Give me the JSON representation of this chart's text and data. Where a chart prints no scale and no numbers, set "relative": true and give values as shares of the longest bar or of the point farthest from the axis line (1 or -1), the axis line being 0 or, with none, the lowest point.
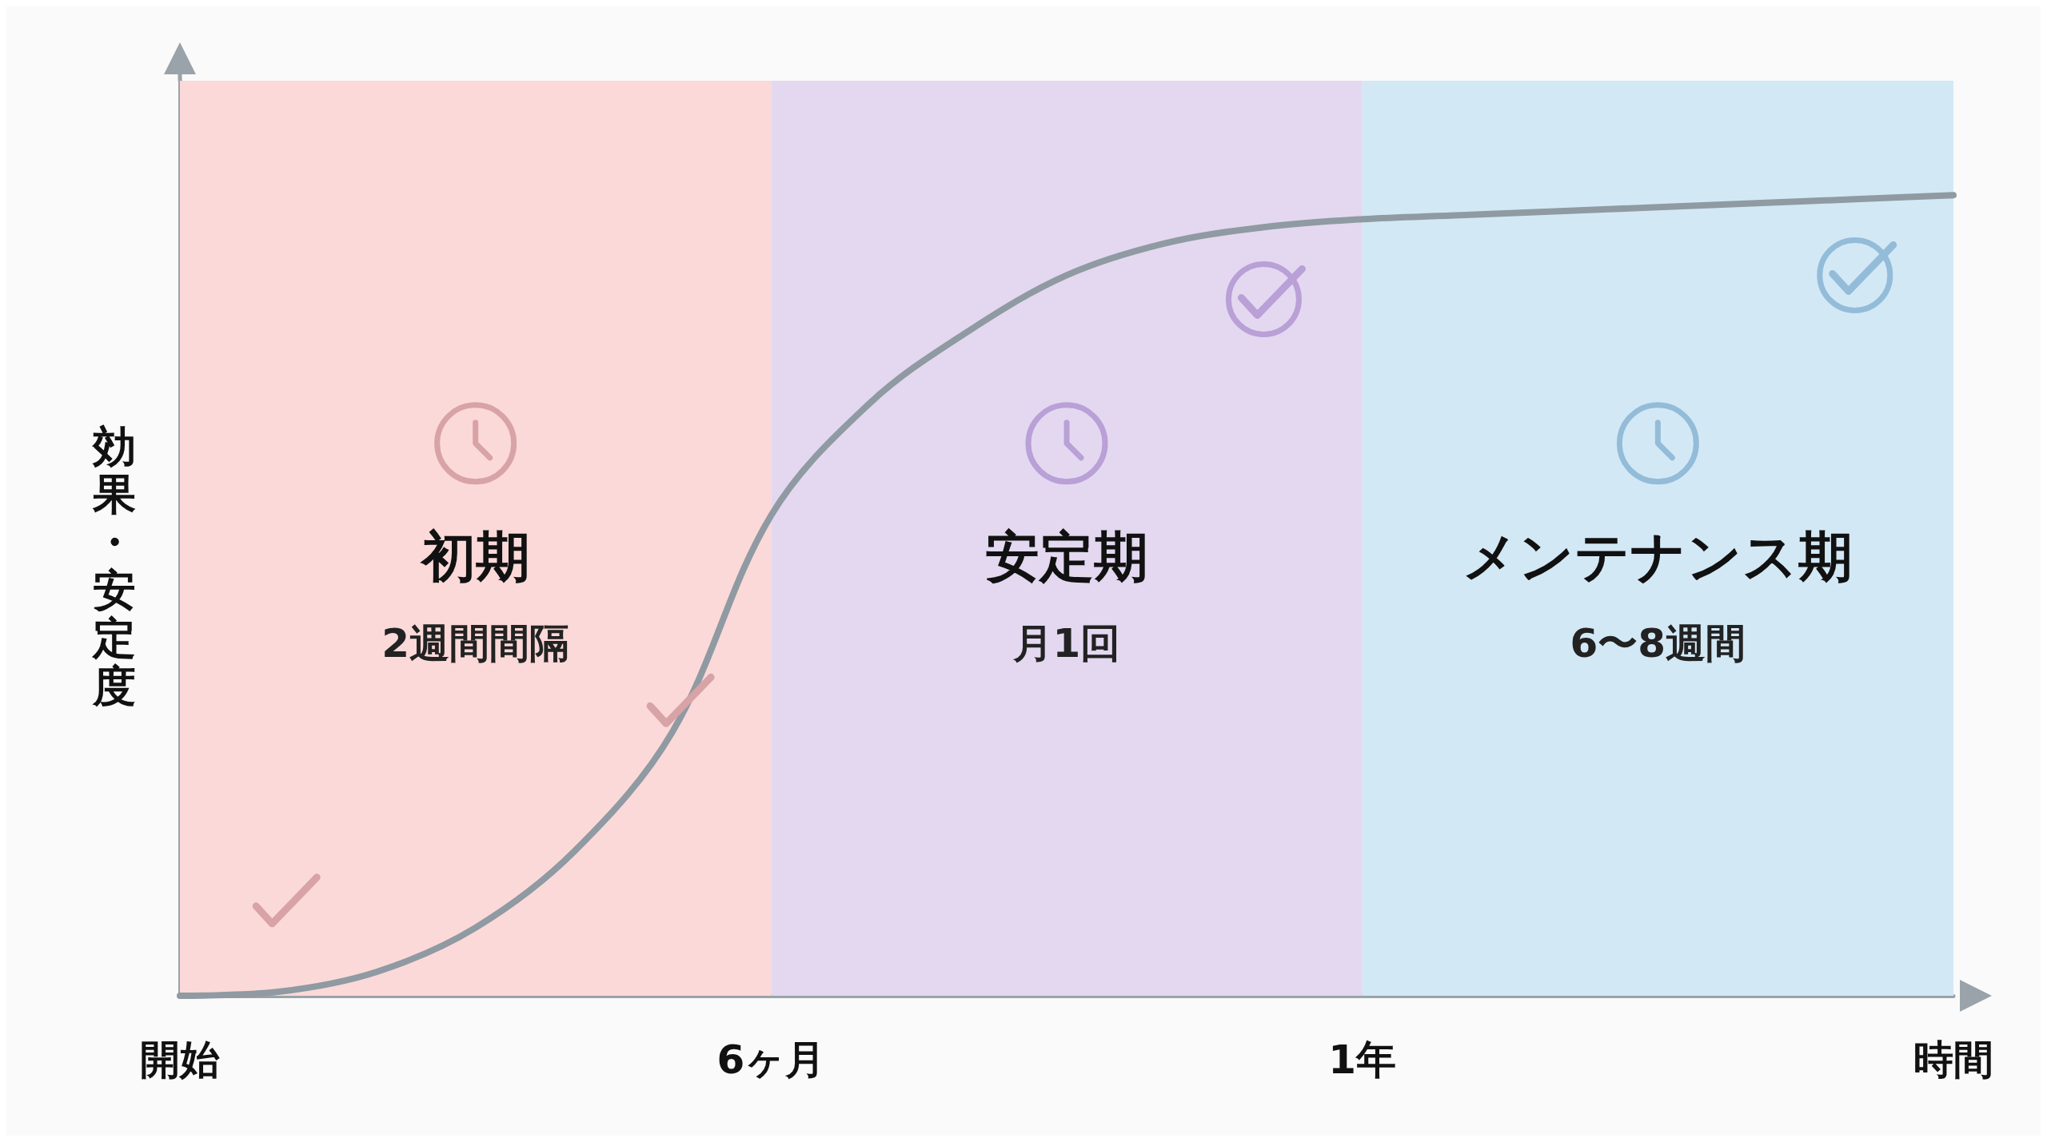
{
  "chart_data": {
    "type": "line",
    "relative": true,
    "ylabel": "効果・安定度",
    "categories": [
      "開始",
      null,
      null,
      null,
      null,
      null,
      "6ヶ月",
      null,
      null,
      null,
      null,
      null,
      "1年",
      null,
      null,
      null,
      null,
      null,
      "時間"
    ],
    "series": [
      {
        "color": "#8f9aa2",
        "values": [
          0,
          0.005,
          0.03,
          0.085,
          0.18,
          0.33,
          0.6,
          0.74,
          0.83,
          0.9,
          0.94,
          0.96,
          0.97,
          0.975,
          0.98,
          0.985,
          0.99,
          0.995,
          1
        ]
      }
    ],
    "bands": [
      {
        "axis": "x",
        "from": "開始",
        "to": "6ヶ月",
        "label": "初期",
        "color": "#fbd9d8"
      },
      {
        "axis": "x",
        "from": "6ヶ月",
        "to": "1年",
        "label": "安定期",
        "color": "#e3d8f0"
      },
      {
        "axis": "x",
        "from": "1年",
        "to": "時間",
        "label": "メンテナンス期",
        "color": "#d3e8f5"
      }
    ],
    "annotations": [
      "2週間間隔",
      "月1回",
      "6〜8週間"
    ],
    "grid": false,
    "marker": "none",
    "line_style": "solid"
  }
}
